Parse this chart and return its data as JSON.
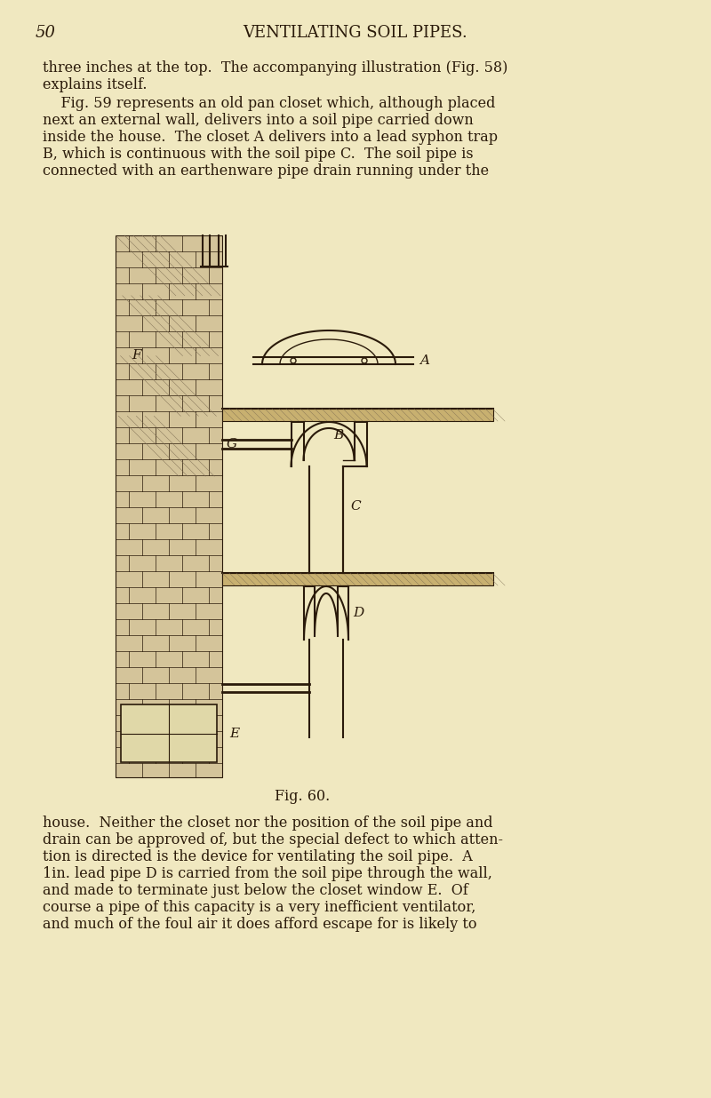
{
  "background_color": "#f0e8c0",
  "page_num": "50",
  "header": "VENTILATING SOIL PIPES.",
  "text_color": "#2a1a0a",
  "para1": "three inches at the top.  The accompanying illustration (Fig. 58)\nexplains itself.",
  "para2": "    Fig. 59 represents an old pan closet which, although placed\nnext an external wall, delivers into a soil pipe carried down\ninside the house.  The closet A delivers into a lead syphon trap\nB, which is continuous with the soil pipe C.  The soil pipe is\nconnected with an earthenware pipe drain running under the",
  "fig_caption": "Fig. 60.",
  "para3": "house.  Neither the closet nor the position of the soil pipe and\ndrain can be approved of, but the special defect to which atten-\ntion is directed is the device for ventilating the soil pipe.  A\n1in. lead pipe D is carried from the soil pipe through the wall,\nand made to terminate just below the closet window E.  Of\ncourse a pipe of this capacity is a very inefficient ventilator,\nand much of the foul air it does afford escape for is likely to",
  "font_size_header": 13,
  "font_size_text": 11.5,
  "font_size_page": 13,
  "wall_hatch_color": "#8B7355",
  "wall_fill_color": "#c8b896",
  "pipe_color": "#5a4a3a",
  "floor_color": "#8B7355"
}
